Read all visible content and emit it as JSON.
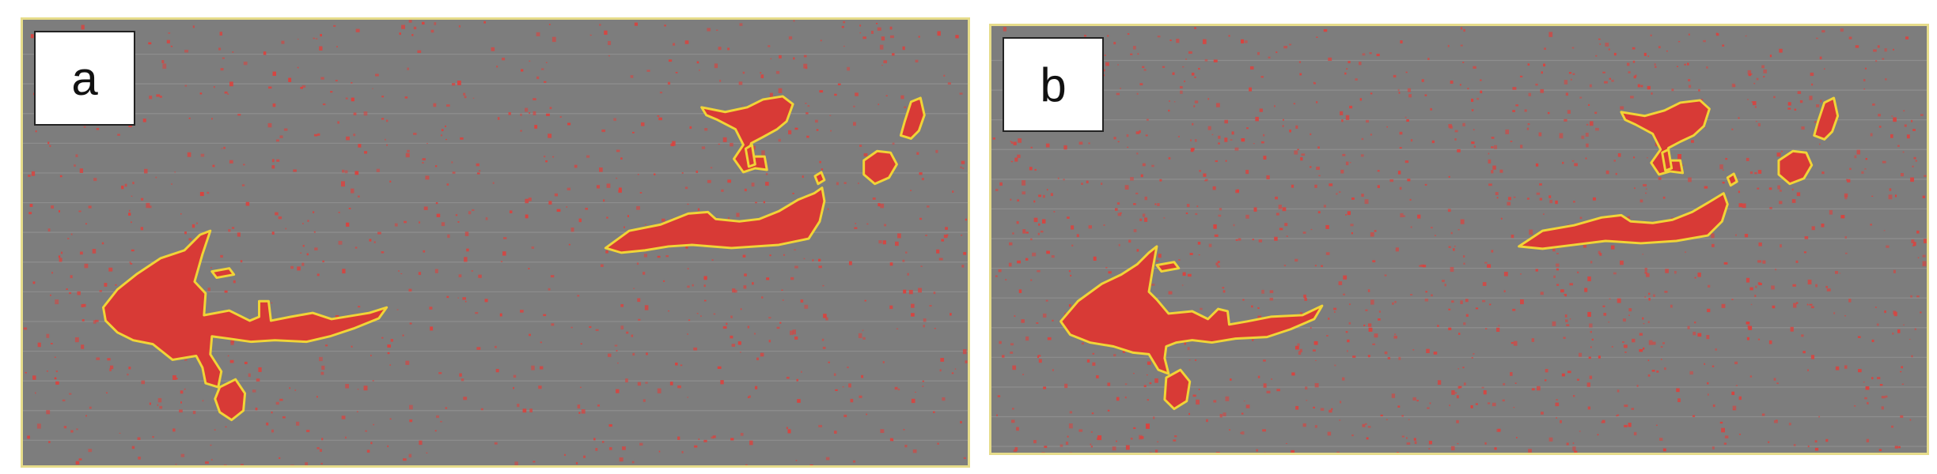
{
  "panels": [
    {
      "label": "a",
      "speckle_seed": 17,
      "speckle_count": 950
    },
    {
      "label": "b",
      "speckle_seed": 53,
      "speckle_count": 1250
    }
  ],
  "colors": {
    "background": "#ffffff",
    "panel_fill": "#7d7d7d",
    "panel_border": "#e6dc8a",
    "region_fill": "#d83a36",
    "region_outline": "#f1d437",
    "speckle": "#d9433f",
    "scanline": "#9c9c9c"
  }
}
